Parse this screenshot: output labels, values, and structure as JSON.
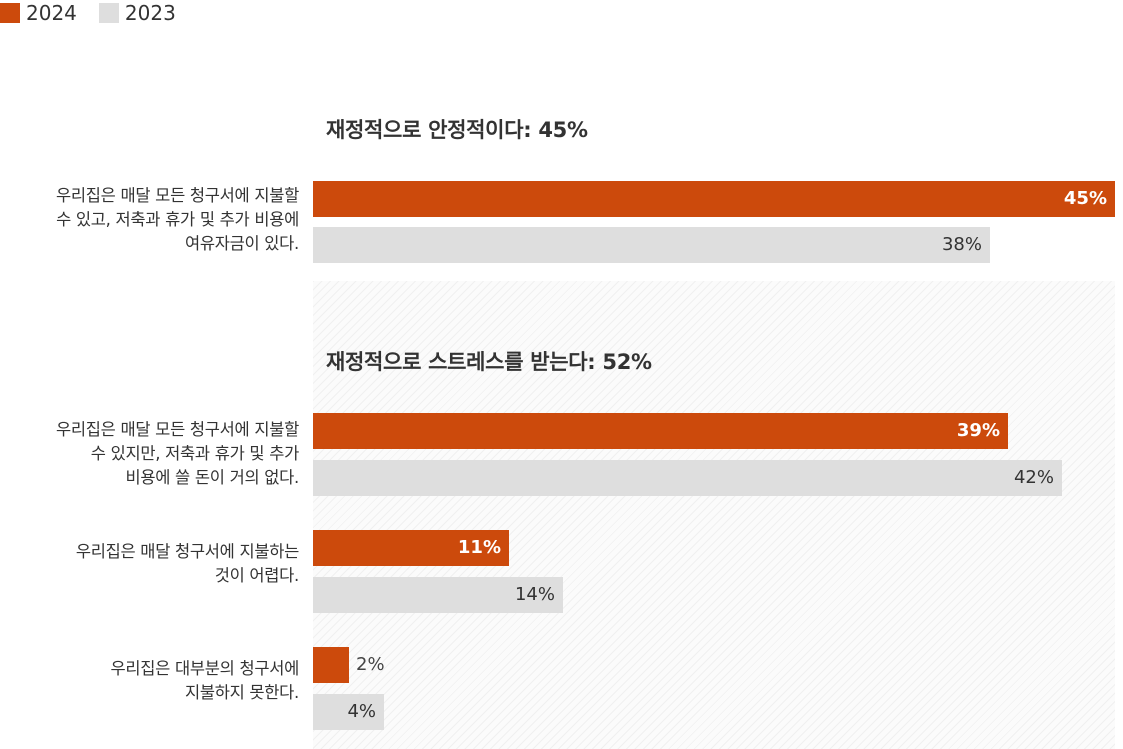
{
  "legend": [
    {
      "label": "2024",
      "color": "#cc4a0c"
    },
    {
      "label": "2023",
      "color": "#dedede"
    }
  ],
  "sections": {
    "stable_title": "재정적으로 안정적이다: 45%",
    "stressed_title": "재정적으로 스트레스를 받는다: 52%"
  },
  "rows": [
    {
      "lines": [
        "우리집은 매달 모든 청구서에 지불할",
        "수 있고, 저축과 휴가 및 추가 비용에",
        "여유자금이 있다."
      ],
      "v2024": 45,
      "v2023": 38,
      "t2024": "45%",
      "t2023": "38%"
    },
    {
      "lines": [
        "우리집은 매달 모든 청구서에 지불할",
        "수 있지만, 저축과 휴가 및 추가",
        "비용에 쓸 돈이 거의 없다."
      ],
      "v2024": 39,
      "v2023": 42,
      "t2024": "39%",
      "t2023": "42%"
    },
    {
      "lines": [
        "우리집은 매달 청구서에 지불하는",
        "것이 어렵다."
      ],
      "v2024": 11,
      "v2023": 14,
      "t2024": "11%",
      "t2023": "14%"
    },
    {
      "lines": [
        "우리집은 대부분의 청구서에",
        "지불하지 못한다."
      ],
      "v2024": 2,
      "v2023": 4,
      "t2024": "2%",
      "t2023": "4%"
    }
  ],
  "chart_data": {
    "type": "bar",
    "orientation": "horizontal",
    "categories": [
      "우리집은 매달 모든 청구서에 지불할 수 있고, 저축과 휴가 및 추가 비용에 여유자금이 있다.",
      "우리집은 매달 모든 청구서에 지불할 수 있지만, 저축과 휴가 및 추가 비용에 쓸 돈이 거의 없다.",
      "우리집은 매달 청구서에 지불하는 것이 어렵다.",
      "우리집은 대부분의 청구서에 지불하지 못한다."
    ],
    "series": [
      {
        "name": "2024",
        "values": [
          45,
          39,
          11,
          2
        ],
        "color": "#cc4a0c"
      },
      {
        "name": "2023",
        "values": [
          38,
          42,
          14,
          4
        ],
        "color": "#dedede"
      }
    ],
    "groups": [
      {
        "title": "재정적으로 안정적이다: 45%",
        "categories": [
          0
        ]
      },
      {
        "title": "재정적으로 스트레스를 받는다: 52%",
        "categories": [
          1,
          2,
          3
        ]
      }
    ],
    "xlim": [
      0,
      45
    ],
    "unit": "%",
    "legend": "top-left",
    "grid": false
  }
}
